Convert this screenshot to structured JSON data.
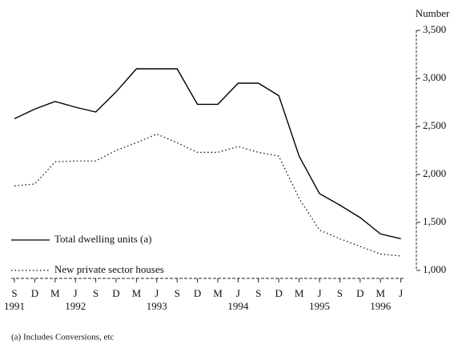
{
  "chart_data": {
    "type": "line",
    "y_axis_label": "Number",
    "y_axis_side": "right",
    "categories": [
      "S",
      "D",
      "M",
      "J",
      "S",
      "D",
      "M",
      "J",
      "S",
      "D",
      "M",
      "J",
      "S",
      "D",
      "M",
      "J",
      "S",
      "D",
      "M",
      "J"
    ],
    "x_year_labels": [
      "1991",
      null,
      null,
      "1992",
      null,
      null,
      null,
      "1993",
      null,
      null,
      null,
      "1994",
      null,
      null,
      null,
      "1995",
      null,
      null,
      "1996",
      null
    ],
    "ylim": [
      1000,
      3500
    ],
    "yticks": [
      {
        "value": 1000,
        "label": "1,000"
      },
      {
        "value": 1500,
        "label": "1,500"
      },
      {
        "value": 2000,
        "label": "2,000"
      },
      {
        "value": 2500,
        "label": "2,500"
      },
      {
        "value": 3000,
        "label": "3,000"
      },
      {
        "value": 3500,
        "label": "3,500"
      }
    ],
    "grid": false,
    "legend": "lower left",
    "series": [
      {
        "name": "Total dwelling units (a)",
        "color": "#000000",
        "line_style": "solid",
        "values": [
          2580,
          2680,
          2760,
          2700,
          2650,
          2860,
          3100,
          3100,
          3100,
          2730,
          2730,
          2950,
          2950,
          2820,
          2190,
          1800,
          1680,
          1550,
          1380,
          1330
        ]
      },
      {
        "name": "New private sector houses",
        "color": "#000000",
        "line_style": "dotted",
        "values": [
          1880,
          1900,
          2130,
          2140,
          2140,
          2250,
          2330,
          2420,
          2330,
          2230,
          2230,
          2290,
          2230,
          2190,
          1750,
          1420,
          1330,
          1250,
          1170,
          1150
        ]
      }
    ],
    "footnote": "(a) Includes Conversions, etc"
  }
}
